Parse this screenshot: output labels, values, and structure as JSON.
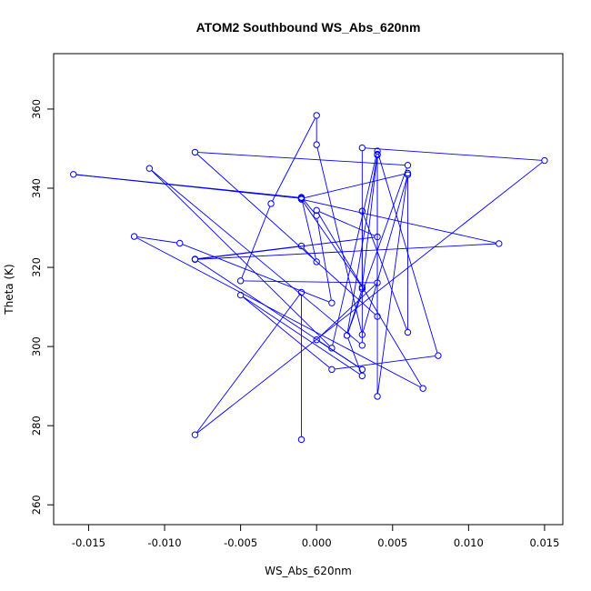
{
  "chart_data": {
    "type": "line",
    "title": "ATOM2 Southbound WS_Abs_620nm",
    "xlabel": "WS_Abs_620nm",
    "ylabel": "Theta (K)",
    "xlim": [
      -0.0173,
      0.0162
    ],
    "ylim": [
      255,
      374
    ],
    "x_ticks": [
      -0.015,
      -0.01,
      -0.005,
      0.0,
      0.005,
      0.01,
      0.015
    ],
    "x_tick_labels": [
      "-0.015",
      "-0.010",
      "-0.005",
      "0.000",
      "0.005",
      "0.010",
      "0.015"
    ],
    "y_ticks": [
      260,
      280,
      300,
      320,
      340,
      360
    ],
    "y_tick_labels": [
      "260",
      "280",
      "300",
      "320",
      "340",
      "360"
    ],
    "grid": false,
    "series": [
      {
        "name": "",
        "color": "#0000ff",
        "marker": "open-circle",
        "x": [
          -0.001,
          -0.001,
          -0.008,
          0.015,
          0.003,
          0.003,
          -0.011,
          0.001,
          0.004,
          0.008,
          0.001,
          -0.005,
          0.003,
          0.002,
          0.004,
          0.004,
          -0.008,
          0.006,
          0.002,
          0.003,
          0.003,
          0.006,
          0.006,
          0.003,
          0.0,
          0.0,
          -0.003,
          -0.005,
          0.004,
          0.0,
          0.003,
          -0.008,
          -0.001,
          0.0,
          -0.001,
          -0.016,
          -0.001,
          0.006,
          0.004,
          0.004,
          0.003,
          -0.001,
          0.012,
          -0.008,
          0.004,
          0.0,
          0.007,
          -0.012,
          -0.009,
          0.001,
          0.0,
          -0.001
        ],
        "y": [
          276.5,
          313.7,
          277.7,
          347.0,
          350.2,
          300.3,
          345.0,
          299.6,
          349.4,
          297.7,
          294.2,
          313.0,
          292.6,
          302.8,
          348.4,
          307.6,
          349.1,
          345.8,
          302.8,
          314.6,
          334.2,
          303.6,
          343.4,
          303.0,
          351.0,
          358.4,
          336.1,
          316.6,
          316.1,
          301.7,
          294.2,
          322.1,
          325.4,
          321.4,
          337.6,
          343.5,
          337.4,
          343.8,
          287.4,
          348.6,
          315.0,
          337.2,
          326.0,
          322.0,
          327.7,
          334.4,
          289.4,
          327.8,
          326.1,
          311.0,
          333.1,
          337.7
        ]
      }
    ]
  }
}
